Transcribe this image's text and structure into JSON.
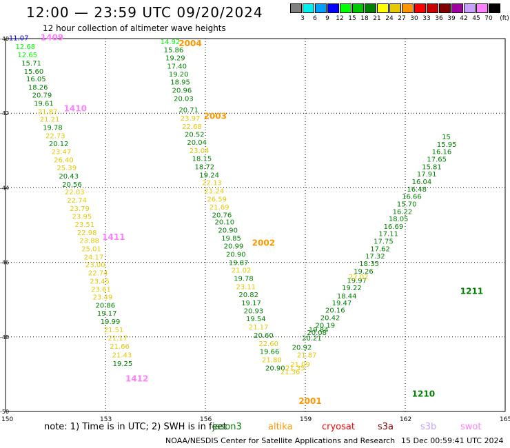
{
  "header": {
    "title": "12:00 — 23:59 UTC 09/20/2024",
    "subtitle": "12 hour collection of altimeter wave heights"
  },
  "legend": {
    "unit": "(ft)",
    "bins": [
      {
        "label": "3",
        "color": "#808080"
      },
      {
        "label": "6",
        "color": "#00f0f0"
      },
      {
        "label": "9",
        "color": "#00a0ff"
      },
      {
        "label": "12",
        "color": "#0000ff"
      },
      {
        "label": "15",
        "color": "#00ff00"
      },
      {
        "label": "18",
        "color": "#00c800"
      },
      {
        "label": "21",
        "color": "#008000"
      },
      {
        "label": "24",
        "color": "#ffff00"
      },
      {
        "label": "27",
        "color": "#e6c800"
      },
      {
        "label": "30",
        "color": "#ff9600"
      },
      {
        "label": "33",
        "color": "#ff0000"
      },
      {
        "label": "36",
        "color": "#c80000"
      },
      {
        "label": "39",
        "color": "#800000"
      },
      {
        "label": "42",
        "color": "#a000a0"
      },
      {
        "label": "45",
        "color": "#c8a0ff"
      },
      {
        "label": "70",
        "color": "#ff80ff"
      },
      {
        "label": "",
        "color": "#000000"
      }
    ]
  },
  "map": {
    "lon_ticks": [
      "150",
      "153",
      "156",
      "159",
      "162",
      "165"
    ],
    "lat_ticks": [
      "-40",
      "-42",
      "-44",
      "-46",
      "-48",
      "-50"
    ]
  },
  "pass_labels": [
    {
      "text": "1409",
      "color": "#ff80ff",
      "lon": 151.05,
      "lat": -40.05
    },
    {
      "text": "1410",
      "color": "#ff80ff",
      "lon": 151.75,
      "lat": -41.95
    },
    {
      "text": "1411",
      "color": "#ff80ff",
      "lon": 152.9,
      "lat": -45.4
    },
    {
      "text": "1412",
      "color": "#ff80ff",
      "lon": 153.6,
      "lat": -49.2
    },
    {
      "text": "2004",
      "color": "#ff9600",
      "lon": 155.2,
      "lat": -40.2
    },
    {
      "text": "2003",
      "color": "#ff9600",
      "lon": 155.95,
      "lat": -42.15
    },
    {
      "text": "2002",
      "color": "#ff9600",
      "lon": 157.4,
      "lat": -45.55
    },
    {
      "text": "2001",
      "color": "#ff9600",
      "lon": 158.8,
      "lat": -49.8
    },
    {
      "text": "1211",
      "color": "#008000",
      "lon": 163.65,
      "lat": -46.85
    },
    {
      "text": "1210",
      "color": "#008000",
      "lon": 162.2,
      "lat": -49.6
    }
  ],
  "observations": [
    {
      "v": "11.07",
      "lon": 150.1,
      "lat": -40.05,
      "c": "#0000ff"
    },
    {
      "v": "12.68",
      "lon": 150.3,
      "lat": -40.28,
      "c": "#00ff00"
    },
    {
      "v": "12.65",
      "lon": 150.36,
      "lat": -40.5,
      "c": "#00ff00"
    },
    {
      "v": "15.71",
      "lon": 150.48,
      "lat": -40.72,
      "c": "#008000"
    },
    {
      "v": "15.60",
      "lon": 150.55,
      "lat": -40.94,
      "c": "#008000"
    },
    {
      "v": "16.05",
      "lon": 150.62,
      "lat": -41.15,
      "c": "#008000"
    },
    {
      "v": "18.26",
      "lon": 150.68,
      "lat": -41.37,
      "c": "#008000"
    },
    {
      "v": "20.79",
      "lon": 150.8,
      "lat": -41.58,
      "c": "#008000"
    },
    {
      "v": "19.61",
      "lon": 150.85,
      "lat": -41.8,
      "c": "#008000"
    },
    {
      "v": "21.87",
      "lon": 150.97,
      "lat": -42.02,
      "c": "#e6c800"
    },
    {
      "v": "21.21",
      "lon": 151.03,
      "lat": -42.23,
      "c": "#e6c800"
    },
    {
      "v": "19.78",
      "lon": 151.12,
      "lat": -42.45,
      "c": "#008000"
    },
    {
      "v": "22.73",
      "lon": 151.2,
      "lat": -42.67,
      "c": "#e6c800"
    },
    {
      "v": "20.12",
      "lon": 151.3,
      "lat": -42.88,
      "c": "#008000"
    },
    {
      "v": "23.47",
      "lon": 151.38,
      "lat": -43.1,
      "c": "#e6c800"
    },
    {
      "v": "26.40",
      "lon": 151.45,
      "lat": -43.32,
      "c": "#e6c800"
    },
    {
      "v": "25.39",
      "lon": 151.54,
      "lat": -43.53,
      "c": "#e6c800"
    },
    {
      "v": "20.43",
      "lon": 151.6,
      "lat": -43.75,
      "c": "#008000"
    },
    {
      "v": "20.56",
      "lon": 151.7,
      "lat": -43.97,
      "c": "#008000"
    },
    {
      "v": "22.03",
      "lon": 151.78,
      "lat": -44.18,
      "c": "#e6c800"
    },
    {
      "v": "22.74",
      "lon": 151.85,
      "lat": -44.4,
      "c": "#e6c800"
    },
    {
      "v": "23.79",
      "lon": 151.93,
      "lat": -44.62,
      "c": "#e6c800"
    },
    {
      "v": "23.95",
      "lon": 152.0,
      "lat": -44.83,
      "c": "#e6c800"
    },
    {
      "v": "23.51",
      "lon": 152.08,
      "lat": -45.05,
      "c": "#e6c800"
    },
    {
      "v": "22.98",
      "lon": 152.15,
      "lat": -45.27,
      "c": "#e6c800"
    },
    {
      "v": "23.88",
      "lon": 152.22,
      "lat": -45.48,
      "c": "#e6c800"
    },
    {
      "v": "25.01",
      "lon": 152.28,
      "lat": -45.7,
      "c": "#e6c800"
    },
    {
      "v": "24.17",
      "lon": 152.35,
      "lat": -45.92,
      "c": "#e6c800"
    },
    {
      "v": "23.00",
      "lon": 152.4,
      "lat": -46.13,
      "c": "#e6c800"
    },
    {
      "v": "22.74",
      "lon": 152.48,
      "lat": -46.35,
      "c": "#e6c800"
    },
    {
      "v": "23.45",
      "lon": 152.53,
      "lat": -46.57,
      "c": "#e6c800"
    },
    {
      "v": "23.61",
      "lon": 152.57,
      "lat": -46.78,
      "c": "#e6c800"
    },
    {
      "v": "23.49",
      "lon": 152.62,
      "lat": -47.0,
      "c": "#e6c800"
    },
    {
      "v": "20.86",
      "lon": 152.7,
      "lat": -47.22,
      "c": "#008000"
    },
    {
      "v": "19.17",
      "lon": 152.75,
      "lat": -47.43,
      "c": "#008000"
    },
    {
      "v": "19.99",
      "lon": 152.85,
      "lat": -47.65,
      "c": "#008000"
    },
    {
      "v": "21.51",
      "lon": 152.95,
      "lat": -47.87,
      "c": "#e6c800"
    },
    {
      "v": "21.17",
      "lon": 153.07,
      "lat": -48.1,
      "c": "#e6c800"
    },
    {
      "v": "21.66",
      "lon": 153.13,
      "lat": -48.32,
      "c": "#e6c800"
    },
    {
      "v": "21.43",
      "lon": 153.2,
      "lat": -48.55,
      "c": "#e6c800"
    },
    {
      "v": "19.25",
      "lon": 153.22,
      "lat": -48.78,
      "c": "#008000"
    },
    {
      "v": "14.92",
      "lon": 154.65,
      "lat": -40.15,
      "c": "#00ff00"
    },
    {
      "v": "15.86",
      "lon": 154.75,
      "lat": -40.37,
      "c": "#008000"
    },
    {
      "v": "19.29",
      "lon": 154.8,
      "lat": -40.58,
      "c": "#008000"
    },
    {
      "v": "17.40",
      "lon": 154.85,
      "lat": -40.8,
      "c": "#008000"
    },
    {
      "v": "19.20",
      "lon": 154.9,
      "lat": -41.02,
      "c": "#008000"
    },
    {
      "v": "18.95",
      "lon": 154.95,
      "lat": -41.23,
      "c": "#008000"
    },
    {
      "v": "20.96",
      "lon": 155.0,
      "lat": -41.45,
      "c": "#008000"
    },
    {
      "v": "20.03",
      "lon": 155.05,
      "lat": -41.67,
      "c": "#008000"
    },
    {
      "v": "20.71",
      "lon": 155.2,
      "lat": -41.98,
      "c": "#008000"
    },
    {
      "v": "23.97",
      "lon": 155.25,
      "lat": -42.2,
      "c": "#e6c800"
    },
    {
      "v": "22.68",
      "lon": 155.3,
      "lat": -42.42,
      "c": "#e6c800"
    },
    {
      "v": "20.52",
      "lon": 155.38,
      "lat": -42.63,
      "c": "#008000"
    },
    {
      "v": "20.04",
      "lon": 155.45,
      "lat": -42.85,
      "c": "#008000"
    },
    {
      "v": "23.04",
      "lon": 155.52,
      "lat": -43.07,
      "c": "#e6c800"
    },
    {
      "v": "18.15",
      "lon": 155.6,
      "lat": -43.28,
      "c": "#008000"
    },
    {
      "v": "18.72",
      "lon": 155.68,
      "lat": -43.5,
      "c": "#008000"
    },
    {
      "v": "19.24",
      "lon": 155.82,
      "lat": -43.72,
      "c": "#008000"
    },
    {
      "v": "22.13",
      "lon": 155.9,
      "lat": -43.93,
      "c": "#e6c800"
    },
    {
      "v": "21.24",
      "lon": 155.97,
      "lat": -44.15,
      "c": "#e6c800"
    },
    {
      "v": "26.59",
      "lon": 156.05,
      "lat": -44.37,
      "c": "#e6c800"
    },
    {
      "v": "21.69",
      "lon": 156.12,
      "lat": -44.58,
      "c": "#e6c800"
    },
    {
      "v": "20.76",
      "lon": 156.2,
      "lat": -44.8,
      "c": "#008000"
    },
    {
      "v": "20.10",
      "lon": 156.28,
      "lat": -44.98,
      "c": "#008000"
    },
    {
      "v": "20.90",
      "lon": 156.38,
      "lat": -45.2,
      "c": "#008000"
    },
    {
      "v": "19.85",
      "lon": 156.48,
      "lat": -45.42,
      "c": "#008000"
    },
    {
      "v": "20.99",
      "lon": 156.55,
      "lat": -45.63,
      "c": "#008000"
    },
    {
      "v": "20.90",
      "lon": 156.62,
      "lat": -45.85,
      "c": "#008000"
    },
    {
      "v": "19.87",
      "lon": 156.7,
      "lat": -46.07,
      "c": "#008000"
    },
    {
      "v": "21.02",
      "lon": 156.78,
      "lat": -46.28,
      "c": "#e6c800"
    },
    {
      "v": "19.78",
      "lon": 156.85,
      "lat": -46.5,
      "c": "#008000"
    },
    {
      "v": "23.11",
      "lon": 156.92,
      "lat": -46.72,
      "c": "#e6c800"
    },
    {
      "v": "20.82",
      "lon": 157.0,
      "lat": -46.93,
      "c": "#008000"
    },
    {
      "v": "19.17",
      "lon": 157.08,
      "lat": -47.15,
      "c": "#008000"
    },
    {
      "v": "20.93",
      "lon": 157.15,
      "lat": -47.37,
      "c": "#008000"
    },
    {
      "v": "19.54",
      "lon": 157.22,
      "lat": -47.58,
      "c": "#008000"
    },
    {
      "v": "21.17",
      "lon": 157.3,
      "lat": -47.8,
      "c": "#e6c800"
    },
    {
      "v": "20.60",
      "lon": 157.45,
      "lat": -48.02,
      "c": "#008000"
    },
    {
      "v": "22.60",
      "lon": 157.6,
      "lat": -48.24,
      "c": "#e6c800"
    },
    {
      "v": "19.66",
      "lon": 157.63,
      "lat": -48.46,
      "c": "#008000"
    },
    {
      "v": "21.80",
      "lon": 157.7,
      "lat": -48.68,
      "c": "#e6c800"
    },
    {
      "v": "20.90",
      "lon": 157.8,
      "lat": -48.9,
      "c": "#008000"
    },
    {
      "v": "21.36",
      "lon": 158.25,
      "lat": -49.0,
      "c": "#e6c800"
    },
    {
      "v": "21.35",
      "lon": 158.4,
      "lat": -48.9,
      "c": "#e6c800"
    },
    {
      "v": "21.09",
      "lon": 158.55,
      "lat": -48.8,
      "c": "#e6c800"
    },
    {
      "v": "21.87",
      "lon": 158.75,
      "lat": -48.55,
      "c": "#e6c800"
    },
    {
      "v": "20.92",
      "lon": 158.6,
      "lat": -48.35,
      "c": "#008000"
    },
    {
      "v": "20.21",
      "lon": 158.9,
      "lat": -48.1,
      "c": "#008000"
    },
    {
      "v": "20.08",
      "lon": 159.05,
      "lat": -47.95,
      "c": "#008000"
    },
    {
      "v": "19.84",
      "lon": 159.1,
      "lat": -47.87,
      "c": "#008000"
    },
    {
      "v": "20.19",
      "lon": 159.3,
      "lat": -47.75,
      "c": "#008000"
    },
    {
      "v": "20.42",
      "lon": 159.45,
      "lat": -47.55,
      "c": "#008000"
    },
    {
      "v": "20.16",
      "lon": 159.6,
      "lat": -47.35,
      "c": "#008000"
    },
    {
      "v": "19.47",
      "lon": 159.8,
      "lat": -47.15,
      "c": "#008000"
    },
    {
      "v": "18.44",
      "lon": 159.95,
      "lat": -46.97,
      "c": "#008000"
    },
    {
      "v": "19.22",
      "lon": 160.1,
      "lat": -46.75,
      "c": "#008000"
    },
    {
      "v": "19.97",
      "lon": 160.25,
      "lat": -46.55,
      "c": "#008000"
    },
    {
      "v": "22.02",
      "lon": 160.3,
      "lat": -46.45,
      "c": "#e6c800"
    },
    {
      "v": "19.26",
      "lon": 160.45,
      "lat": -46.3,
      "c": "#008000"
    },
    {
      "v": "18.35",
      "lon": 160.62,
      "lat": -46.1,
      "c": "#008000"
    },
    {
      "v": "17.32",
      "lon": 160.8,
      "lat": -45.9,
      "c": "#008000"
    },
    {
      "v": "17.62",
      "lon": 160.95,
      "lat": -45.7,
      "c": "#008000"
    },
    {
      "v": "17.75",
      "lon": 161.05,
      "lat": -45.5,
      "c": "#008000"
    },
    {
      "v": "17.11",
      "lon": 161.2,
      "lat": -45.3,
      "c": "#008000"
    },
    {
      "v": "16.69",
      "lon": 161.35,
      "lat": -45.1,
      "c": "#008000"
    },
    {
      "v": "18.05",
      "lon": 161.5,
      "lat": -44.9,
      "c": "#008000"
    },
    {
      "v": "16.22",
      "lon": 161.62,
      "lat": -44.7,
      "c": "#008000"
    },
    {
      "v": "15.70",
      "lon": 161.75,
      "lat": -44.5,
      "c": "#008000"
    },
    {
      "v": "16.66",
      "lon": 161.9,
      "lat": -44.3,
      "c": "#008000"
    },
    {
      "v": "16.48",
      "lon": 162.05,
      "lat": -44.1,
      "c": "#008000"
    },
    {
      "v": "16.04",
      "lon": 162.2,
      "lat": -43.9,
      "c": "#008000"
    },
    {
      "v": "17.91",
      "lon": 162.35,
      "lat": -43.7,
      "c": "#008000"
    },
    {
      "v": "15.81",
      "lon": 162.5,
      "lat": -43.5,
      "c": "#008000"
    },
    {
      "v": "17.65",
      "lon": 162.65,
      "lat": -43.3,
      "c": "#008000"
    },
    {
      "v": "16.16",
      "lon": 162.8,
      "lat": -43.1,
      "c": "#008000"
    },
    {
      "v": "15.95",
      "lon": 162.95,
      "lat": -42.9,
      "c": "#008000"
    },
    {
      "v": "15",
      "lon": 163.1,
      "lat": -42.7,
      "c": "#008000"
    }
  ],
  "footer": {
    "note": "note:  1) Time is in UTC; 2) SWH is in feet",
    "credit": "NOAA/NESDIS Center for Satellite Applications and Research",
    "generated": "15 Dec 00:59:41 UTC 2024"
  },
  "satellites": [
    {
      "name": "jason3",
      "color": "#008000"
    },
    {
      "name": "altika",
      "color": "#ff9600"
    },
    {
      "name": "cryosat",
      "color": "#ff0000"
    },
    {
      "name": "s3a",
      "color": "#800000"
    },
    {
      "name": "s3b",
      "color": "#c8a0ff"
    },
    {
      "name": "swot",
      "color": "#ff80ff"
    }
  ]
}
